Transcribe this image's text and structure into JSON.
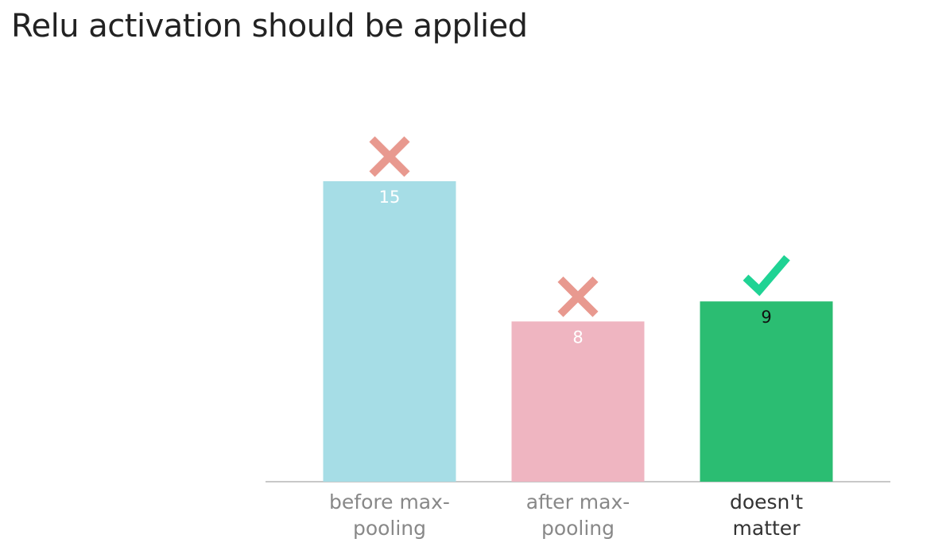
{
  "title": "Relu activation should be applied",
  "chart_data": {
    "type": "bar",
    "title": "Relu activation should be applied",
    "categories": [
      "before max-pooling",
      "after max-pooling",
      "doesn't matter"
    ],
    "category_label_lines": [
      [
        "before max-",
        "pooling"
      ],
      [
        "after max-",
        "pooling"
      ],
      [
        "doesn't",
        "matter"
      ]
    ],
    "values": [
      15,
      8,
      9
    ],
    "colors": [
      "#a6dde6",
      "#efb5c1",
      "#2bbd72"
    ],
    "value_label_colors": [
      "#ffffff",
      "#ffffff",
      "#111111"
    ],
    "category_label_colors": [
      "#888888",
      "#888888",
      "#333333"
    ],
    "markers": [
      "cross-icon",
      "cross-icon",
      "check-icon"
    ],
    "marker_colors": [
      "#e8998f",
      "#e8998f",
      "#1fd394"
    ],
    "correct_answer": "doesn't matter",
    "ylim": [
      0,
      15
    ],
    "grid": false,
    "legend": "none",
    "xlabel": "",
    "ylabel": ""
  }
}
